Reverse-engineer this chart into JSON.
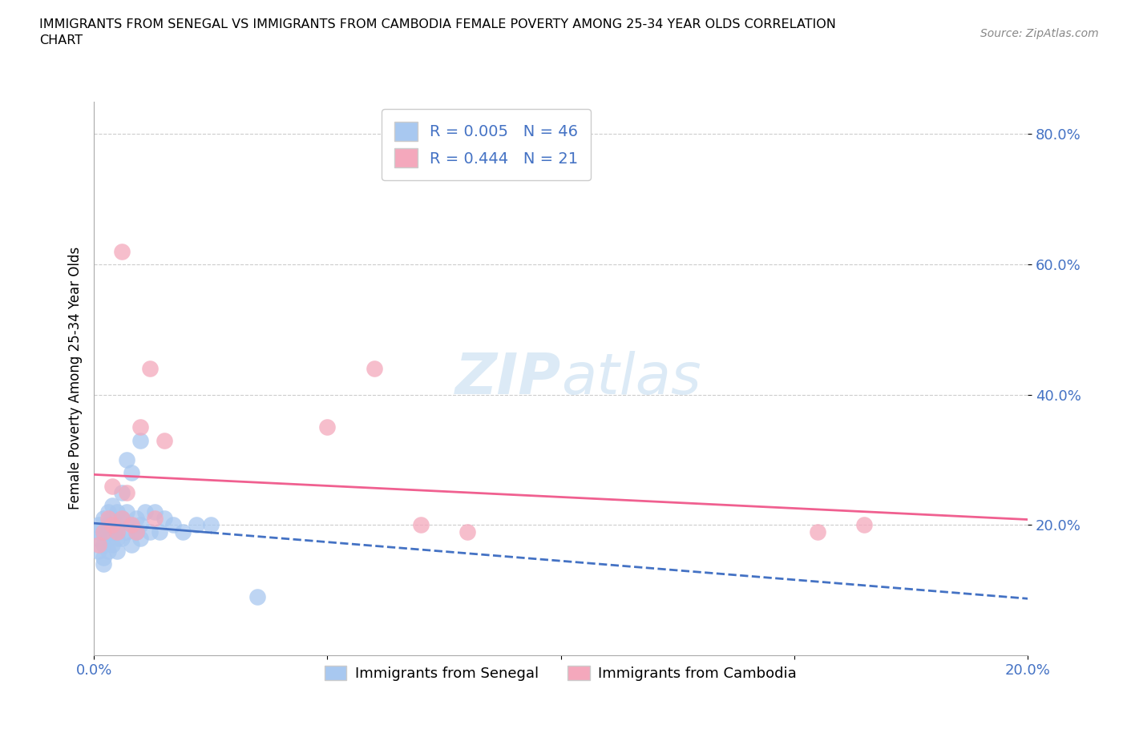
{
  "title": "IMMIGRANTS FROM SENEGAL VS IMMIGRANTS FROM CAMBODIA FEMALE POVERTY AMONG 25-34 YEAR OLDS CORRELATION\nCHART",
  "source": "Source: ZipAtlas.com",
  "ylabel": "Female Poverty Among 25-34 Year Olds",
  "xlim": [
    0.0,
    0.2
  ],
  "ylim": [
    0.0,
    0.85
  ],
  "xtick_positions": [
    0.0,
    0.05,
    0.1,
    0.15,
    0.2
  ],
  "xticklabels": [
    "0.0%",
    "",
    "",
    "",
    "20.0%"
  ],
  "ytick_positions": [
    0.2,
    0.4,
    0.6,
    0.8
  ],
  "ytick_labels": [
    "20.0%",
    "40.0%",
    "60.0%",
    "80.0%"
  ],
  "senegal_R": 0.005,
  "senegal_N": 46,
  "cambodia_R": 0.444,
  "cambodia_N": 21,
  "senegal_color": "#a8c8f0",
  "cambodia_color": "#f4a8bc",
  "senegal_line_color": "#4472c4",
  "cambodia_line_color": "#f06090",
  "watermark_color": "#c5ddf0",
  "senegal_x": [
    0.001,
    0.001,
    0.001,
    0.001,
    0.002,
    0.002,
    0.002,
    0.002,
    0.002,
    0.003,
    0.003,
    0.003,
    0.003,
    0.004,
    0.004,
    0.004,
    0.004,
    0.005,
    0.005,
    0.005,
    0.005,
    0.005,
    0.006,
    0.006,
    0.006,
    0.007,
    0.007,
    0.007,
    0.008,
    0.008,
    0.008,
    0.009,
    0.009,
    0.01,
    0.01,
    0.01,
    0.011,
    0.012,
    0.013,
    0.014,
    0.015,
    0.017,
    0.019,
    0.022,
    0.025,
    0.035
  ],
  "senegal_y": [
    0.2,
    0.19,
    0.18,
    0.16,
    0.21,
    0.19,
    0.17,
    0.15,
    0.14,
    0.2,
    0.18,
    0.22,
    0.16,
    0.19,
    0.21,
    0.23,
    0.17,
    0.2,
    0.19,
    0.22,
    0.18,
    0.16,
    0.25,
    0.21,
    0.18,
    0.3,
    0.22,
    0.19,
    0.28,
    0.2,
    0.17,
    0.19,
    0.21,
    0.33,
    0.2,
    0.18,
    0.22,
    0.19,
    0.22,
    0.19,
    0.21,
    0.2,
    0.19,
    0.2,
    0.2,
    0.09
  ],
  "cambodia_x": [
    0.001,
    0.002,
    0.003,
    0.004,
    0.004,
    0.005,
    0.006,
    0.006,
    0.007,
    0.008,
    0.009,
    0.01,
    0.012,
    0.013,
    0.015,
    0.05,
    0.06,
    0.07,
    0.08,
    0.155,
    0.165
  ],
  "cambodia_y": [
    0.17,
    0.19,
    0.21,
    0.2,
    0.26,
    0.19,
    0.21,
    0.62,
    0.25,
    0.2,
    0.19,
    0.35,
    0.44,
    0.21,
    0.33,
    0.35,
    0.44,
    0.2,
    0.19,
    0.19,
    0.2
  ]
}
